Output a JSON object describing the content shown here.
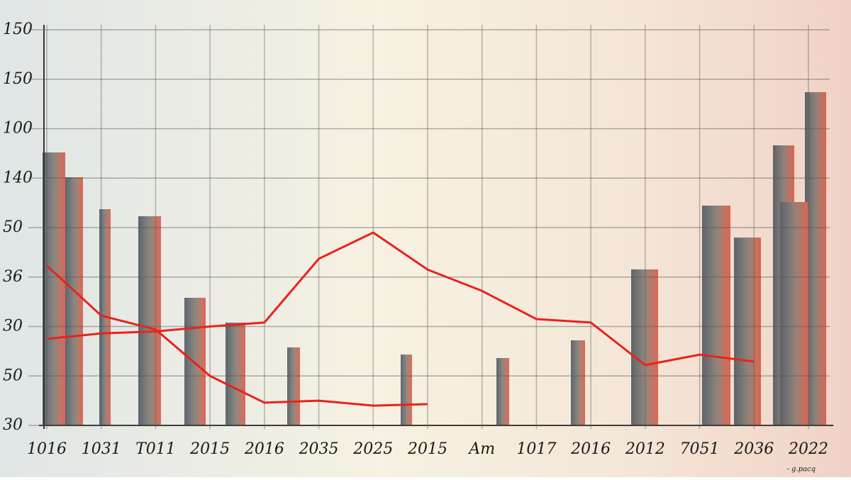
{
  "chart_data": {
    "type": "line",
    "categories": [
      "1016",
      "1031",
      "T011",
      "2015",
      "2016",
      "2035",
      "2025",
      "2015",
      "Am",
      "1017",
      "2016",
      "2012",
      "7051",
      "2036",
      "2022"
    ],
    "series": [
      {
        "color": "#e8231c",
        "values": [
          1.75,
          1.86,
          1.9,
          2.0,
          2.08,
          3.37,
          3.9,
          3.15,
          2.72,
          2.15,
          2.08,
          1.22,
          1.43,
          1.29,
          null
        ]
      },
      {
        "color": "#e8231c",
        "values": [
          3.23,
          2.22,
          1.94,
          1.0,
          0.46,
          0.5,
          0.4,
          0.43,
          null,
          null,
          null,
          null,
          null,
          null,
          null
        ]
      }
    ],
    "ylim": [
      0,
      8
    ],
    "yticks": [
      {
        "value": 0,
        "label": "30"
      },
      {
        "value": 1,
        "label": "50"
      },
      {
        "value": 2,
        "label": "30"
      },
      {
        "value": 3,
        "label": "36"
      },
      {
        "value": 4,
        "label": "50"
      },
      {
        "value": 5,
        "label": "140"
      },
      {
        "value": 6,
        "label": "100"
      },
      {
        "value": 7,
        "label": "150"
      },
      {
        "value": 8,
        "label": "150"
      }
    ],
    "grid": true,
    "credit": "- g.pacq"
  }
}
